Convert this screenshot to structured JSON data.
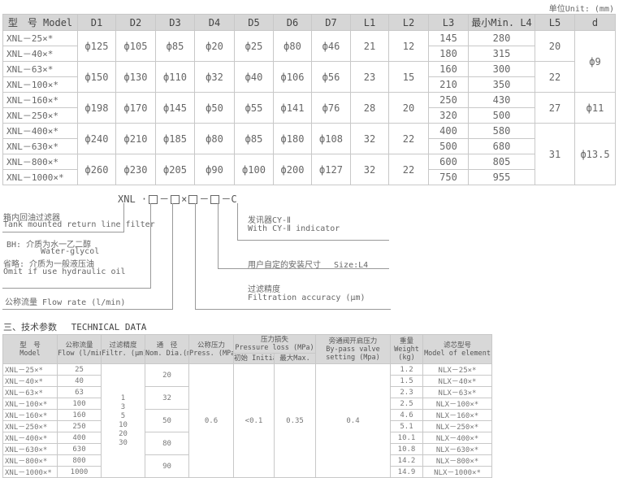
{
  "unit_label": "单位Unit: (mm)",
  "dimensions_table": {
    "headers": [
      "型　号 Model",
      "D1",
      "D2",
      "D3",
      "D4",
      "D5",
      "D6",
      "D7",
      "L1",
      "L2",
      "L3",
      "最小Min. L4",
      "L5",
      "d"
    ],
    "groups": [
      {
        "models": [
          "XNL－25×*",
          "XNL－40×*"
        ],
        "D1": "ф125",
        "D2": "ф105",
        "D3": "ф85",
        "D4": "ф20",
        "D5": "ф25",
        "D6": "ф80",
        "D7": "ф46",
        "L1": "21",
        "L2": "12",
        "L3": [
          "145",
          "180"
        ],
        "L4": [
          "280",
          "315"
        ]
      },
      {
        "models": [
          "XNL－63×*",
          "XNL－100×*"
        ],
        "D1": "ф150",
        "D2": "ф130",
        "D3": "ф110",
        "D4": "ф32",
        "D5": "ф40",
        "D6": "ф106",
        "D7": "ф56",
        "L1": "23",
        "L2": "15",
        "L3": [
          "160",
          "210"
        ],
        "L4": [
          "300",
          "350"
        ]
      },
      {
        "models": [
          "XNL－160×*",
          "XNL－250×*"
        ],
        "D1": "ф198",
        "D2": "ф170",
        "D3": "ф145",
        "D4": "ф50",
        "D5": "ф55",
        "D6": "ф141",
        "D7": "ф76",
        "L1": "28",
        "L2": "20",
        "L3": [
          "250",
          "320"
        ],
        "L4": [
          "430",
          "500"
        ]
      },
      {
        "models": [
          "XNL－400×*",
          "XNL－630×*"
        ],
        "D1": "ф240",
        "D2": "ф210",
        "D3": "ф185",
        "D4": "ф80",
        "D5": "ф85",
        "D6": "ф180",
        "D7": "ф108",
        "L1": "32",
        "L2": "22",
        "L3": [
          "400",
          "500"
        ],
        "L4": [
          "580",
          "680"
        ]
      },
      {
        "models": [
          "XNL－800×*",
          "XNL－1000×*"
        ],
        "D1": "ф260",
        "D2": "ф230",
        "D3": "ф205",
        "D4": "ф90",
        "D5": "ф100",
        "D6": "ф200",
        "D7": "ф127",
        "L1": "32",
        "L2": "22",
        "L3": [
          "600",
          "750"
        ],
        "L4": [
          "805",
          "955"
        ]
      }
    ],
    "L5": [
      "20",
      "22",
      "27",
      "31"
    ],
    "d": [
      "ф9",
      "ф11",
      "ф13.5"
    ]
  },
  "model_code": {
    "prefix": "XNL ·",
    "sep1": "－",
    "times": "×",
    "sep2": "－",
    "sep3": "－",
    "suffix": "C",
    "tank_cn": "箱内回油过滤器",
    "tank_en": "Tank mounted return line filter",
    "bh_cn": "BH: 介质为水一乙二醇",
    "bh_en": "Water-glycol",
    "omit_cn": "省略: 介质为一般液压油",
    "omit_en": "Omit if use hydraulic oil",
    "flow": "公称流量 Flow rate (l/min)",
    "ind_cn": "发讯器CY-Ⅱ",
    "ind_en": "With CY-Ⅱ indicator",
    "size": "用户自定的安装尺寸　 Size:L4",
    "filt_cn": "过滤精度",
    "filt_en": "Filtration accuracy (μm)"
  },
  "technical_data": {
    "title": "三、技术参数　 TECHNICAL DATA",
    "headers": {
      "model": "型　号",
      "model_en": "Model",
      "flow": "公称流量",
      "flow_en": "Flow (l/min)",
      "filtr": "过滤精度",
      "filtr_en": "Filtr. (μm)",
      "nom": "通　径",
      "nom_en": "Nom. Dia.(mm)",
      "press": "公称压力",
      "press_en": "Press. (MPa)",
      "loss": "压力损失",
      "loss_en": "Pressure loss (MPa)",
      "initial": "初始 Initial",
      "max": "最大Max.",
      "bypass": "旁通阀开启压力",
      "bypass_en1": "By-pass valve",
      "bypass_en2": "setting (Mpa)",
      "weight": "重量",
      "weight_en1": "Weight",
      "weight_en2": "(kg)",
      "element": "滤芯型号",
      "element_en": "Model of element"
    },
    "rows": [
      {
        "model": "XNL－25×*",
        "flow": "25",
        "weight": "1.2",
        "element": "NLX－25×*"
      },
      {
        "model": "XNL－40×*",
        "flow": "40",
        "weight": "1.5",
        "element": "NLX－40×*"
      },
      {
        "model": "XNL－63×*",
        "flow": "63",
        "weight": "2.3",
        "element": "NLX－63×*"
      },
      {
        "model": "XNL－100×*",
        "flow": "100",
        "weight": "2.5",
        "element": "NLX－100×*"
      },
      {
        "model": "XNL－160×*",
        "flow": "160",
        "weight": "4.6",
        "element": "NLX－160×*"
      },
      {
        "model": "XNL－250×*",
        "flow": "250",
        "weight": "5.1",
        "element": "NLX－250×*"
      },
      {
        "model": "XNL－400×*",
        "flow": "400",
        "weight": "10.1",
        "element": "NLX－400×*"
      },
      {
        "model": "XNL－630×*",
        "flow": "630",
        "weight": "10.8",
        "element": "NLX－630×*"
      },
      {
        "model": "XNL－800×*",
        "flow": "800",
        "weight": "14.2",
        "element": "NLX－800×*"
      },
      {
        "model": "XNL－1000×*",
        "flow": "1000",
        "weight": "14.9",
        "element": "NLX－1000×*"
      }
    ],
    "filtr_values": [
      "1",
      "3",
      "5",
      "10",
      "20",
      "30"
    ],
    "nom_dia": [
      "20",
      "32",
      "50",
      "80",
      "90"
    ],
    "press": "0.6",
    "initial": "<0.1",
    "max": "0.35",
    "bypass": "0.4"
  }
}
